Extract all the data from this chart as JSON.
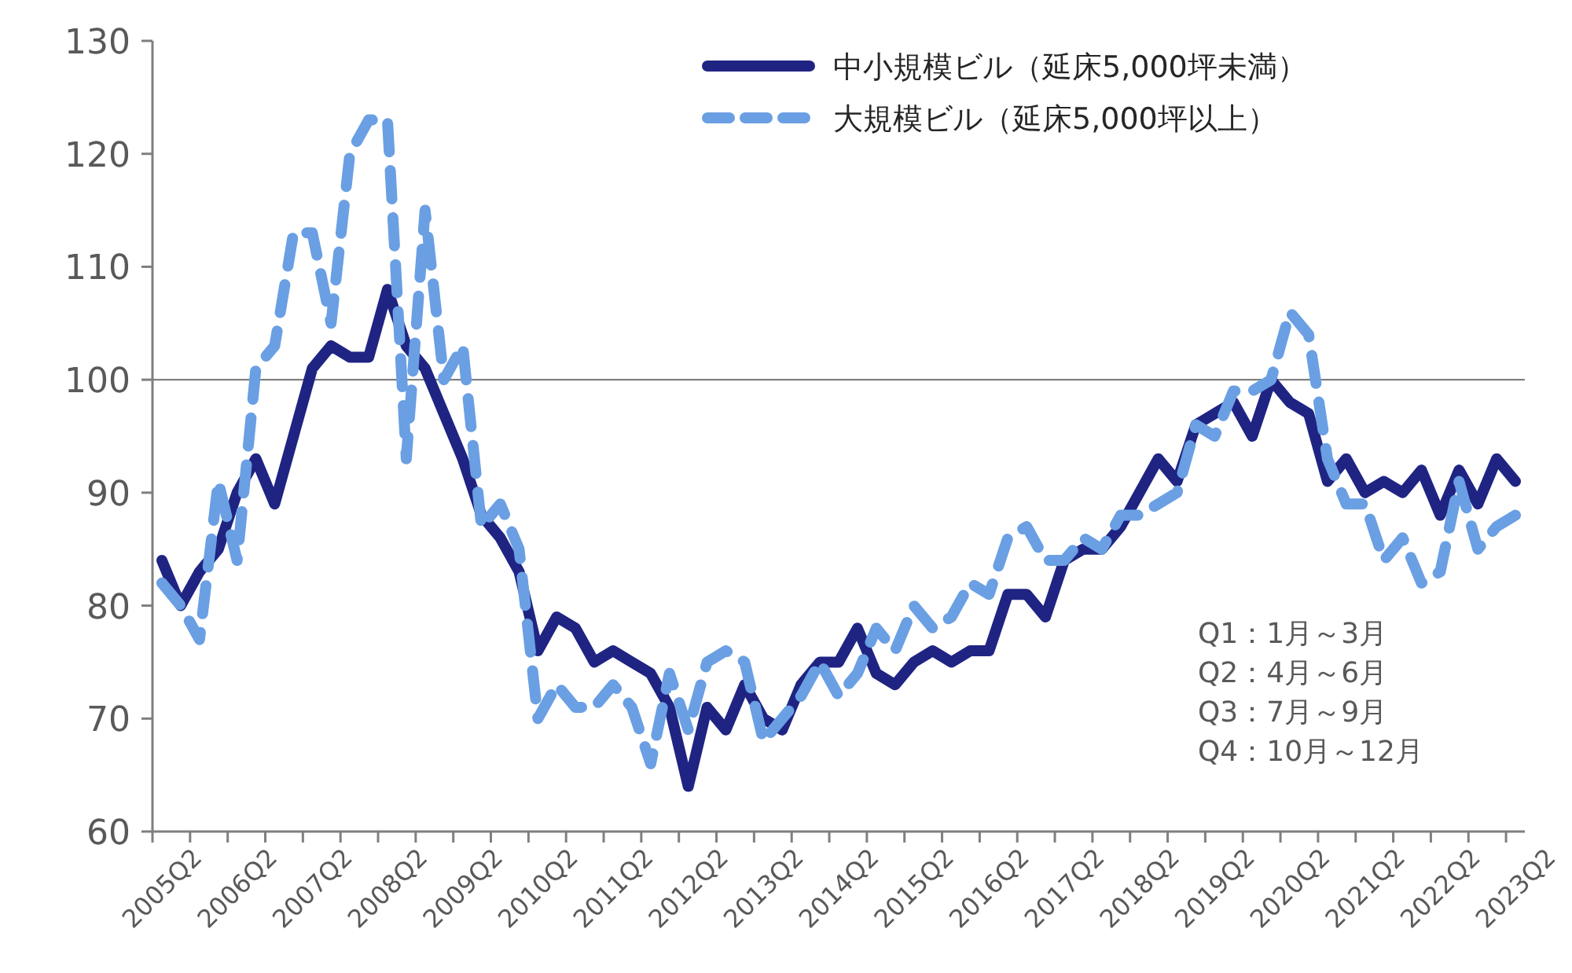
{
  "chart_data": {
    "type": "line",
    "categories": [
      "2005Q2",
      null,
      null,
      null,
      "2006Q2",
      null,
      null,
      null,
      "2007Q2",
      null,
      null,
      null,
      "2008Q2",
      null,
      null,
      null,
      "2009Q2",
      null,
      null,
      null,
      "2010Q2",
      null,
      null,
      null,
      "2011Q2",
      null,
      null,
      null,
      "2012Q2",
      null,
      null,
      null,
      "2013Q2",
      null,
      null,
      null,
      "2014Q2",
      null,
      null,
      null,
      "2015Q2",
      null,
      null,
      null,
      "2016Q2",
      null,
      null,
      null,
      "2017Q2",
      null,
      null,
      null,
      "2018Q2",
      null,
      null,
      null,
      "2019Q2",
      null,
      null,
      null,
      "2020Q2",
      null,
      null,
      null,
      "2021Q2",
      null,
      null,
      null,
      "2022Q2",
      null,
      null,
      null,
      "2023Q2"
    ],
    "series": [
      {
        "name": "中小規模ビル（延床5,000坪未満）",
        "color": "#1f2483",
        "line_style": "solid",
        "values": [
          84,
          80,
          83,
          85,
          90,
          93,
          89,
          95,
          101,
          103,
          102,
          102,
          108,
          103,
          101,
          97,
          93,
          88,
          86,
          83,
          76,
          79,
          78,
          75,
          76,
          75,
          74,
          71,
          64,
          71,
          69,
          73,
          70,
          69,
          73,
          75,
          75,
          78,
          74,
          73,
          75,
          76,
          75,
          76,
          76,
          81,
          81,
          79,
          84,
          85,
          85,
          87,
          90,
          93,
          91,
          96,
          97,
          98,
          95,
          100,
          98,
          97,
          91,
          93,
          90,
          91,
          90,
          92,
          88,
          92,
          89,
          93,
          91
        ]
      },
      {
        "name": "大規模ビル（延床5,000坪以上）",
        "color": "#6a9fe3",
        "line_style": "dashed",
        "values": [
          82,
          80,
          77,
          91,
          84,
          101,
          103,
          113,
          113,
          105,
          120,
          123,
          123,
          93,
          115,
          100,
          103,
          87,
          89,
          85,
          70,
          73,
          71,
          71,
          73,
          71,
          66,
          74,
          69,
          75,
          76,
          75,
          68,
          70,
          72,
          75,
          72,
          74,
          78,
          76,
          80,
          78,
          79,
          82,
          81,
          86,
          87,
          84,
          84,
          86,
          85,
          88,
          88,
          89,
          90,
          96,
          95,
          99,
          99,
          100,
          106,
          104,
          93,
          89,
          89,
          84,
          86,
          82,
          83,
          91,
          85,
          87,
          88
        ]
      }
    ],
    "ylim": [
      60,
      130
    ],
    "yticks": [
      60,
      70,
      80,
      90,
      100,
      110,
      120,
      130
    ],
    "ref_lines": [
      {
        "axis": "y",
        "value": 100,
        "color": "#808080"
      }
    ],
    "legend": "top right",
    "annotations": [
      "Q1：1月～3月",
      "Q2：4月～6月",
      "Q3：7月～9月",
      "Q4：10月～12月"
    ]
  }
}
